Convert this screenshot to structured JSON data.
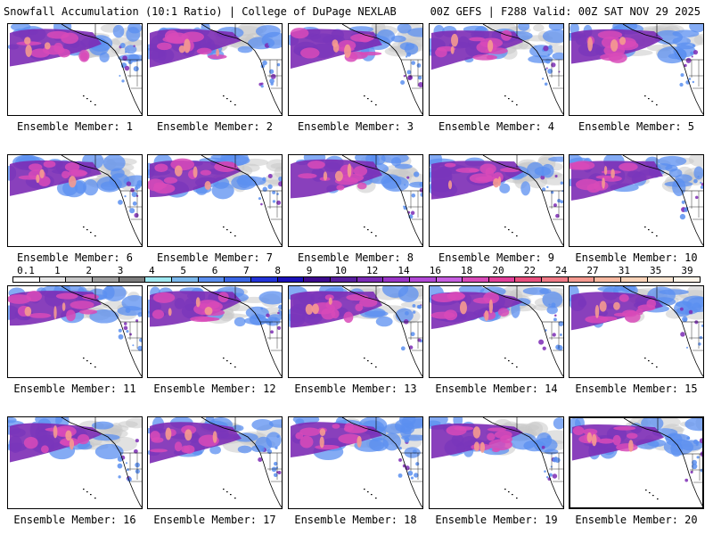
{
  "header": {
    "left_title": "Snowfall Accumulation (10:1 Ratio) | College of DuPage NEXLAB",
    "right_title": "00Z GEFS | F288 Valid: 00Z SAT NOV 29 2025"
  },
  "caption_prefix": "Ensemble Member:",
  "members": [
    {
      "label": "Ensemble Member: 1"
    },
    {
      "label": "Ensemble Member: 2"
    },
    {
      "label": "Ensemble Member: 3"
    },
    {
      "label": "Ensemble Member: 4"
    },
    {
      "label": "Ensemble Member: 5"
    },
    {
      "label": "Ensemble Member: 6"
    },
    {
      "label": "Ensemble Member: 7"
    },
    {
      "label": "Ensemble Member: 8"
    },
    {
      "label": "Ensemble Member: 9"
    },
    {
      "label": "Ensemble Member: 10"
    },
    {
      "label": "Ensemble Member: 11"
    },
    {
      "label": "Ensemble Member: 12"
    },
    {
      "label": "Ensemble Member: 13"
    },
    {
      "label": "Ensemble Member: 14"
    },
    {
      "label": "Ensemble Member: 15"
    },
    {
      "label": "Ensemble Member: 16"
    },
    {
      "label": "Ensemble Member: 17"
    },
    {
      "label": "Ensemble Member: 18"
    },
    {
      "label": "Ensemble Member: 19"
    },
    {
      "label": "Ensemble Member: 20"
    }
  ],
  "legend": {
    "labels": [
      "0.1",
      "1",
      "2",
      "3",
      "4",
      "5",
      "6",
      "7",
      "8",
      "9",
      "10",
      "12",
      "14",
      "16",
      "18",
      "20",
      "22",
      "24",
      "27",
      "31",
      "35",
      "39"
    ],
    "colors": [
      "#ffffff",
      "#e6e6e6",
      "#c8c8c8",
      "#a0a0a0",
      "#7d7d7d",
      "#9ee9f2",
      "#7ab8ec",
      "#5b8ff0",
      "#3a66e6",
      "#2233d8",
      "#1a10b8",
      "#3c0a8e",
      "#581e9e",
      "#7c2bb5",
      "#9a36c7",
      "#b24ad6",
      "#c75fe0",
      "#d84ab8",
      "#e2409a",
      "#e8507e",
      "#f07a86",
      "#f59a90",
      "#f8b8a0",
      "#fbd3b8",
      "#fde6d2",
      "#fff4e8"
    ]
  },
  "colors": {
    "snow_light": "#c8c8c8",
    "snow_blue": "#5b8ff0",
    "snow_purple": "#7c2bb5",
    "snow_magenta": "#d84ab8",
    "snow_peak": "#f59a90",
    "boundary": "#000000"
  }
}
